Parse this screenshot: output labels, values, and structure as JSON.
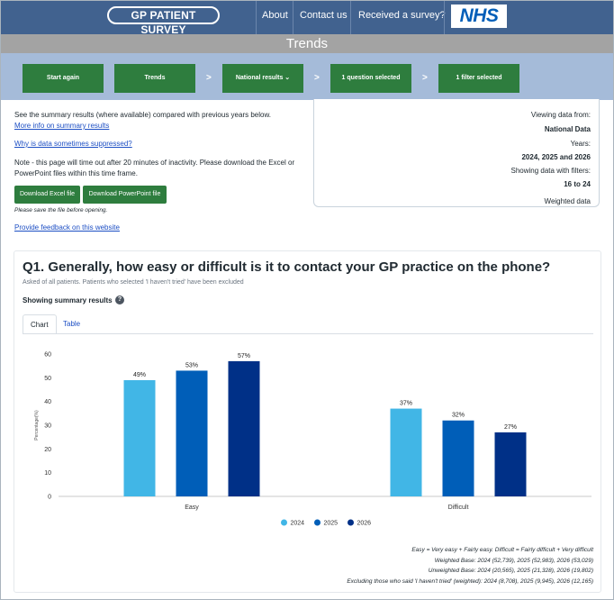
{
  "header": {
    "logo": "GP PATIENT SURVEY",
    "nav": [
      "About",
      "Contact us",
      "Received a survey?"
    ],
    "nhs_logo": "NHS"
  },
  "title": "Trends",
  "steps": {
    "start_again": "Start again",
    "trends": "Trends",
    "national_results": "National results",
    "question_selected": "1 question selected",
    "filter_selected": "1 filter selected",
    "separator": ">"
  },
  "info": {
    "summary_text": "See the summary results (where available) compared with previous years below.",
    "summary_link": "More info on summary results",
    "suppressed_link": "Why is data sometimes suppressed?",
    "note_line1": "Note - this page will time out after 20 minutes of inactivity. Please download the Excel or",
    "note_line2": "PowerPoint files within this time frame.",
    "download_excel": "Download Excel file",
    "download_ppt": "Download PowerPoint file",
    "save_note": "Please save the file before opening.",
    "feedback_link": "Provide feedback on this website"
  },
  "panel": {
    "viewing_label": "Viewing data from:",
    "viewing_value": "National Data",
    "years_label": "Years:",
    "years_value": "2024, 2025 and 2026",
    "filters_label": "Showing data with filters:",
    "filters_value": "16 to 24",
    "weighted": "Weighted data"
  },
  "question": {
    "title": "Q1. Generally, how easy or difficult is it to contact your GP practice on the phone?",
    "subtitle": "Asked of all patients. Patients who selected 'I haven't tried' have been excluded",
    "showing": "Showing summary results",
    "help": "?",
    "tabs": [
      "Chart",
      "Table"
    ]
  },
  "chart_data": {
    "type": "bar",
    "categories": [
      "Easy",
      "Difficult"
    ],
    "series": [
      {
        "name": "2024",
        "values": [
          49,
          37
        ],
        "color": "#41b6e6"
      },
      {
        "name": "2025",
        "values": [
          53,
          32
        ],
        "color": "#005eb8"
      },
      {
        "name": "2026",
        "values": [
          57,
          27
        ],
        "color": "#003087"
      }
    ],
    "data_labels": [
      [
        "49%",
        "37%"
      ],
      [
        "53%",
        "32%"
      ],
      [
        "57%",
        "27%"
      ]
    ],
    "ylabel": "Percentage(%)",
    "ylim": [
      0,
      60
    ],
    "yticks": [
      0,
      10,
      20,
      30,
      40,
      50,
      60
    ],
    "legend_position": "bottom-center",
    "grid": false
  },
  "footnotes": [
    "Easy = Very easy + Fairly easy. Difficult = Fairly difficult + Very difficult",
    "Weighted Base: 2024 (52,739), 2025 (52,983), 2026 (53,029)",
    "Unweighted Base: 2024 (20,565), 2025 (21,328), 2026 (19,802)",
    "Excluding those who said 'I haven't tried' (weighted): 2024 (8,708), 2025 (9,945), 2026 (12,165)"
  ]
}
